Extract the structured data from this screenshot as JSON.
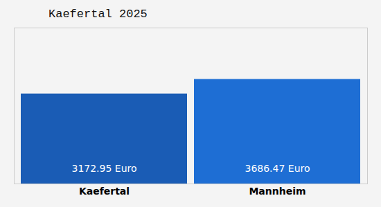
{
  "chart_data": {
    "type": "bar",
    "title": "Kaefertal 2025",
    "categories": [
      "Kaefertal",
      "Mannheim"
    ],
    "values": [
      3172.95,
      3686.47
    ],
    "value_labels": [
      "3172.95 Euro",
      "3686.47 Euro"
    ],
    "colors": [
      "#1a5cb5",
      "#1e6ed4"
    ],
    "ylim": [
      0,
      5500
    ],
    "grid": false,
    "data_labels": true,
    "tick_labels": "x"
  }
}
